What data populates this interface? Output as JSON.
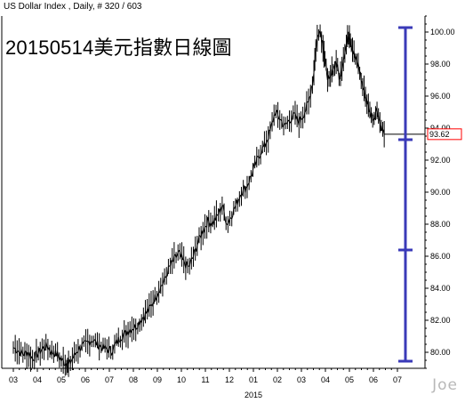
{
  "header": {
    "title": "US Dollar Index , Daily, # 320 / 603"
  },
  "headline": "20150514美元指數日線圖",
  "watermark": "Joe",
  "chart_data": {
    "type": "line",
    "title": "20150514美元指數日線圖",
    "x_tick_labels": [
      "03",
      "04",
      "05",
      "06",
      "07",
      "08",
      "09",
      "10",
      "11",
      "12",
      "01",
      "02",
      "03",
      "04",
      "05",
      "06",
      "07"
    ],
    "x_year_label": "2015",
    "y_tick_labels": [
      "80.00",
      "82.00",
      "84.00",
      "86.00",
      "88.00",
      "90.00",
      "92.00",
      "94.00",
      "96.00",
      "98.00",
      "100.00"
    ],
    "ylim": [
      79.0,
      101.0
    ],
    "last_price": 93.62,
    "last_price_label": "93.62",
    "last_price_color": "#ff0000",
    "grid": false,
    "series": [
      {
        "values": [
          {
            "m": 0.0,
            "v": 80.3
          },
          {
            "m": 0.2,
            "v": 80.1
          },
          {
            "m": 0.4,
            "v": 79.9
          },
          {
            "m": 0.6,
            "v": 80.0
          },
          {
            "m": 0.8,
            "v": 79.6
          },
          {
            "m": 1.0,
            "v": 79.9
          },
          {
            "m": 1.2,
            "v": 80.2
          },
          {
            "m": 1.4,
            "v": 80.4
          },
          {
            "m": 1.6,
            "v": 80.0
          },
          {
            "m": 1.8,
            "v": 79.9
          },
          {
            "m": 2.0,
            "v": 79.5
          },
          {
            "m": 2.2,
            "v": 79.3
          },
          {
            "m": 2.3,
            "v": 79.2
          },
          {
            "m": 2.5,
            "v": 79.7
          },
          {
            "m": 2.7,
            "v": 80.2
          },
          {
            "m": 2.9,
            "v": 80.4
          },
          {
            "m": 3.1,
            "v": 80.6
          },
          {
            "m": 3.3,
            "v": 80.8
          },
          {
            "m": 3.5,
            "v": 80.5
          },
          {
            "m": 3.7,
            "v": 80.3
          },
          {
            "m": 3.9,
            "v": 80.2
          },
          {
            "m": 4.1,
            "v": 80.1
          },
          {
            "m": 4.3,
            "v": 80.6
          },
          {
            "m": 4.5,
            "v": 81.0
          },
          {
            "m": 4.7,
            "v": 81.2
          },
          {
            "m": 4.9,
            "v": 81.5
          },
          {
            "m": 5.1,
            "v": 81.6
          },
          {
            "m": 5.3,
            "v": 82.0
          },
          {
            "m": 5.5,
            "v": 82.4
          },
          {
            "m": 5.7,
            "v": 82.8
          },
          {
            "m": 5.9,
            "v": 83.4
          },
          {
            "m": 6.1,
            "v": 84.0
          },
          {
            "m": 6.3,
            "v": 84.5
          },
          {
            "m": 6.5,
            "v": 85.3
          },
          {
            "m": 6.7,
            "v": 85.8
          },
          {
            "m": 6.9,
            "v": 86.2
          },
          {
            "m": 7.1,
            "v": 85.6
          },
          {
            "m": 7.3,
            "v": 85.3
          },
          {
            "m": 7.5,
            "v": 86.0
          },
          {
            "m": 7.7,
            "v": 86.9
          },
          {
            "m": 7.9,
            "v": 87.6
          },
          {
            "m": 8.1,
            "v": 88.2
          },
          {
            "m": 8.3,
            "v": 88.1
          },
          {
            "m": 8.5,
            "v": 88.5
          },
          {
            "m": 8.7,
            "v": 89.2
          },
          {
            "m": 8.9,
            "v": 88.0
          },
          {
            "m": 9.1,
            "v": 88.6
          },
          {
            "m": 9.3,
            "v": 89.3
          },
          {
            "m": 9.5,
            "v": 90.0
          },
          {
            "m": 9.7,
            "v": 90.3
          },
          {
            "m": 9.9,
            "v": 91.0
          },
          {
            "m": 10.1,
            "v": 91.8
          },
          {
            "m": 10.3,
            "v": 92.5
          },
          {
            "m": 10.5,
            "v": 93.0
          },
          {
            "m": 10.7,
            "v": 93.8
          },
          {
            "m": 10.9,
            "v": 95.0
          },
          {
            "m": 11.1,
            "v": 94.6
          },
          {
            "m": 11.3,
            "v": 94.1
          },
          {
            "m": 11.5,
            "v": 94.5
          },
          {
            "m": 11.7,
            "v": 94.8
          },
          {
            "m": 11.9,
            "v": 94.4
          },
          {
            "m": 12.1,
            "v": 94.9
          },
          {
            "m": 12.3,
            "v": 95.6
          },
          {
            "m": 12.5,
            "v": 97.2
          },
          {
            "m": 12.6,
            "v": 99.0
          },
          {
            "m": 12.75,
            "v": 100.3
          },
          {
            "m": 12.9,
            "v": 99.2
          },
          {
            "m": 13.0,
            "v": 98.0
          },
          {
            "m": 13.15,
            "v": 96.8
          },
          {
            "m": 13.3,
            "v": 97.6
          },
          {
            "m": 13.45,
            "v": 98.2
          },
          {
            "m": 13.6,
            "v": 97.0
          },
          {
            "m": 13.75,
            "v": 98.4
          },
          {
            "m": 13.9,
            "v": 99.4
          },
          {
            "m": 14.0,
            "v": 99.9
          },
          {
            "m": 14.1,
            "v": 99.1
          },
          {
            "m": 14.25,
            "v": 98.3
          },
          {
            "m": 14.4,
            "v": 97.8
          },
          {
            "m": 14.55,
            "v": 96.6
          },
          {
            "m": 14.7,
            "v": 95.8
          },
          {
            "m": 14.85,
            "v": 95.0
          },
          {
            "m": 15.0,
            "v": 94.6
          },
          {
            "m": 15.15,
            "v": 95.2
          },
          {
            "m": 15.3,
            "v": 94.1
          },
          {
            "m": 15.45,
            "v": 93.62
          }
        ]
      }
    ]
  }
}
